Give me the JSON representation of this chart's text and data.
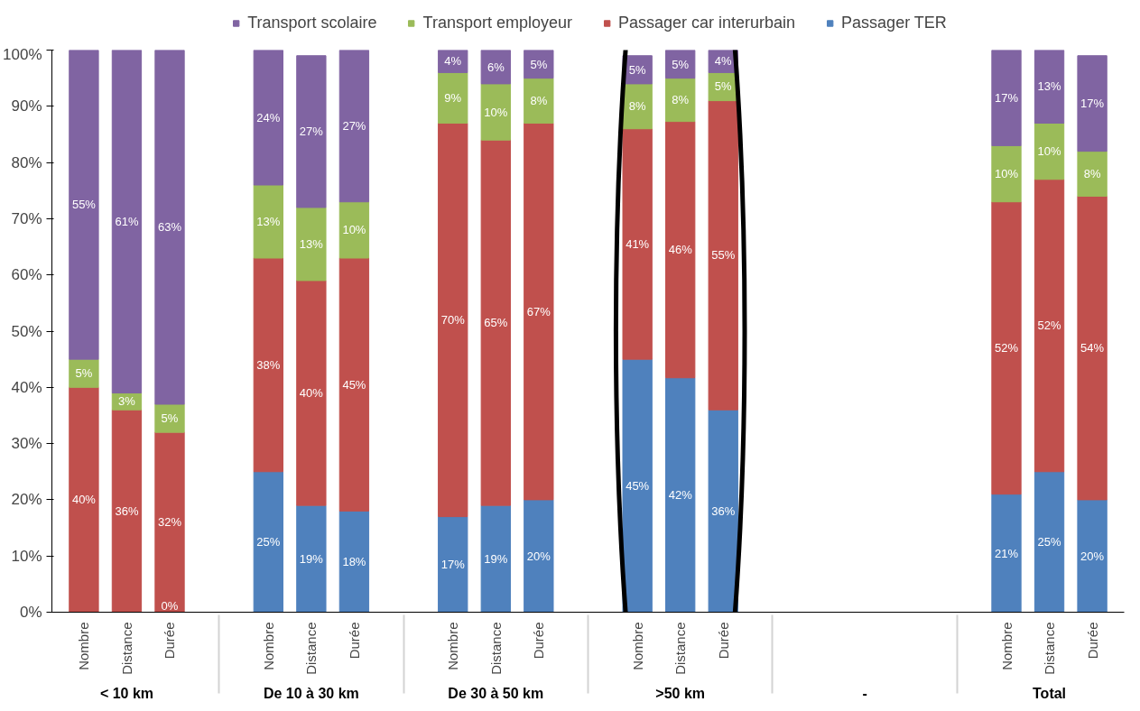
{
  "chart_data": {
    "type": "bar",
    "stacked": true,
    "categories": [
      "Nombre",
      "Distance",
      "Durée",
      "Nombre",
      "Distance",
      "Durée",
      "Nombre",
      "Distance",
      "Durée",
      "Nombre",
      "Distance",
      "Durée",
      null,
      null,
      null,
      "Nombre",
      "Distance",
      "Durée"
    ],
    "annotations": [
      "< 10 km",
      "De 10 à 30 km",
      "De 30 à 50 km",
      ">50 km",
      "-",
      "Total"
    ],
    "series": [
      {
        "name": "Passager TER",
        "color": "#4f81bd",
        "values": [
          0,
          0,
          0,
          25,
          19,
          18,
          17,
          19,
          20,
          45,
          41.7,
          36,
          null,
          null,
          null,
          21,
          25,
          20
        ],
        "value_labels": [
          null,
          null,
          "0%",
          "25%",
          "19%",
          "18%",
          "17%",
          "19%",
          "20%",
          "45%",
          "42%",
          "36%",
          null,
          null,
          null,
          "21%",
          "25%",
          "20%"
        ]
      },
      {
        "name": "Passager car interurbain",
        "color": "#c0504d",
        "values": [
          40,
          36,
          32,
          38,
          40,
          45,
          70,
          65,
          67,
          41,
          45.6,
          55,
          null,
          null,
          null,
          52,
          52,
          54
        ],
        "value_labels": [
          "40%",
          "36%",
          "32%",
          "38%",
          "40%",
          "45%",
          "70%",
          "65%",
          "67%",
          "41%",
          "46%",
          "55%",
          null,
          null,
          null,
          "52%",
          "52%",
          "54%"
        ]
      },
      {
        "name": "Transport employeur",
        "color": "#9bbb59",
        "values": [
          5,
          3,
          5,
          13,
          13,
          10,
          9,
          10,
          8,
          8,
          7.7,
          5,
          null,
          null,
          null,
          10,
          10,
          8
        ],
        "value_labels": [
          "5%",
          "3%",
          "5%",
          "13%",
          "13%",
          "10%",
          "9%",
          "10%",
          "8%",
          "8%",
          "8%",
          "5%",
          null,
          null,
          null,
          "10%",
          "10%",
          "8%"
        ]
      },
      {
        "name": "Transport scolaire",
        "color": "#8064a2",
        "values": [
          55,
          61,
          63,
          24,
          27,
          27,
          4,
          6,
          5,
          5,
          5,
          4,
          null,
          null,
          null,
          17,
          13,
          17
        ],
        "value_labels": [
          "55%",
          "61%",
          "63%",
          "24%",
          "27%",
          "27%",
          "4%",
          "6%",
          "5%",
          "5%",
          "5%",
          "4%",
          null,
          null,
          null,
          "17%",
          "13%",
          "17%"
        ]
      }
    ],
    "ylim": [
      0,
      100
    ],
    "yticks": [
      {
        "value": 0,
        "label": "0%"
      },
      {
        "value": 10,
        "label": "10%"
      },
      {
        "value": 20,
        "label": "20%"
      },
      {
        "value": 30,
        "label": "30%"
      },
      {
        "value": 40,
        "label": "40%"
      },
      {
        "value": 50,
        "label": "50%"
      },
      {
        "value": 60,
        "label": "60%"
      },
      {
        "value": 70,
        "label": "70%"
      },
      {
        "value": 80,
        "label": "80%"
      },
      {
        "value": 90,
        "label": "90%"
      },
      {
        "value": 100,
        "label": "100%"
      }
    ],
    "grid": false,
    "legend": "top"
  }
}
